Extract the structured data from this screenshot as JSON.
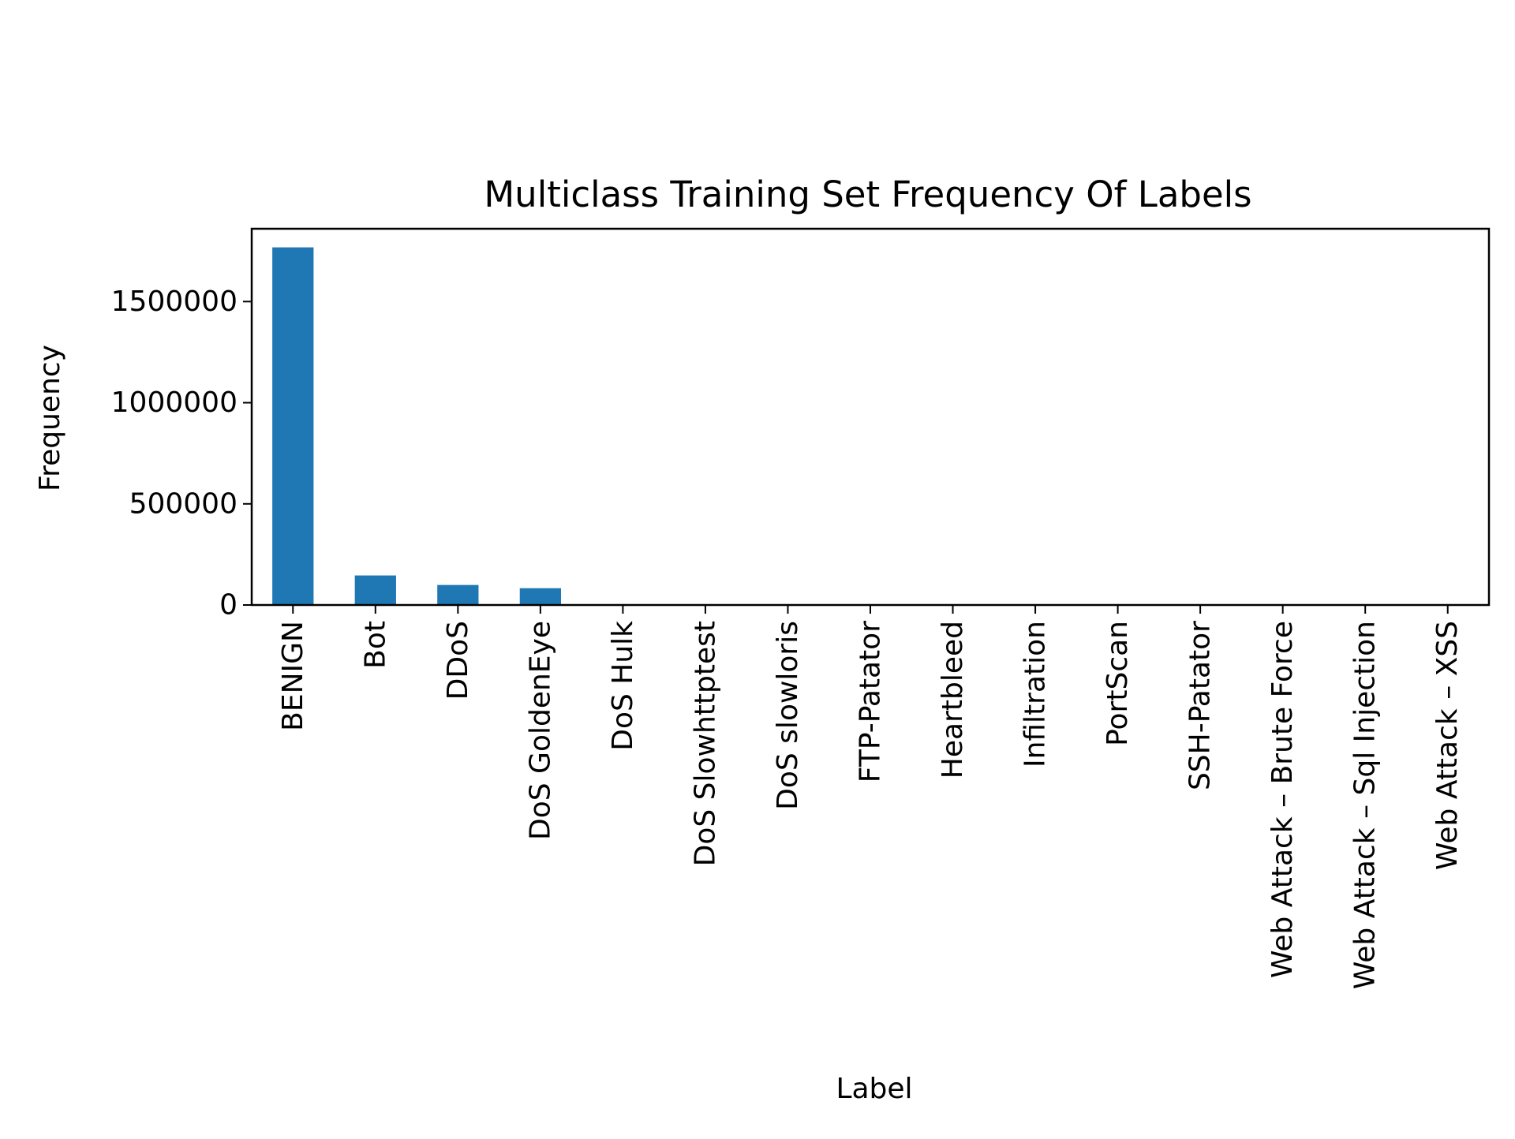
{
  "chart_data": {
    "type": "bar",
    "title": "Multiclass Training Set  Frequency Of  Labels",
    "xlabel": "Label",
    "ylabel": "Frequency",
    "categories": [
      "BENIGN",
      "Bot",
      "DDoS",
      "DoS GoldenEye",
      "DoS Hulk",
      "DoS Slowhttptest",
      "DoS slowloris",
      "FTP-Patator",
      "Heartbleed",
      "Infiltration",
      "PortScan",
      "SSH-Patator",
      "Web Attack – Brute Force",
      "Web Attack – Sql Injection",
      "Web Attack – XSS"
    ],
    "values": [
      1768000,
      146000,
      99000,
      83000,
      3500,
      2500,
      1100,
      800,
      11,
      36,
      300,
      600,
      150,
      21,
      65
    ],
    "ylim": [
      0,
      1860000
    ],
    "yticks": [
      0,
      500000,
      1000000,
      1500000
    ],
    "ytick_labels": [
      "0",
      "500000",
      "1000000",
      "1500000"
    ],
    "bar_color": "#1f77b4",
    "grid": false,
    "legend": "none"
  }
}
